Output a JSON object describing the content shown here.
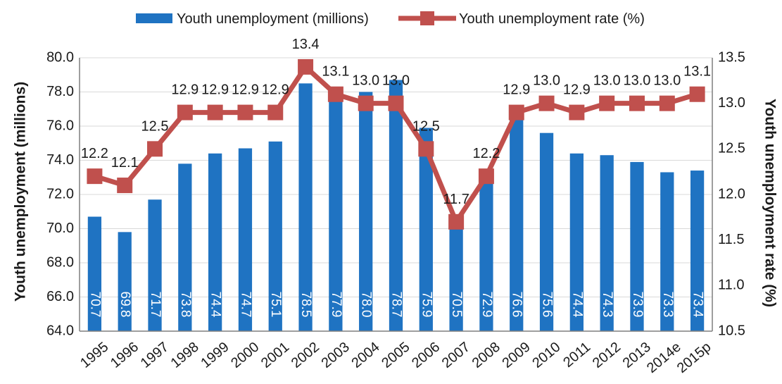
{
  "chart_data": {
    "type": "bar",
    "title": "",
    "categories": [
      "1995",
      "1996",
      "1997",
      "1998",
      "1999",
      "2000",
      "2001",
      "2002",
      "2003",
      "2004",
      "2005",
      "2006",
      "2007",
      "2008",
      "2009",
      "2010",
      "2011",
      "2012",
      "2013",
      "2014e",
      "2015p"
    ],
    "series": [
      {
        "name": "Youth unemployment (millions)",
        "type": "bar",
        "axis": "left",
        "color": "#1f73c2",
        "values": [
          70.7,
          69.8,
          71.7,
          73.8,
          74.4,
          74.7,
          75.1,
          78.5,
          77.9,
          78.0,
          78.7,
          75.9,
          70.5,
          72.9,
          76.6,
          75.6,
          74.4,
          74.3,
          73.9,
          73.3,
          73.4
        ]
      },
      {
        "name": "Youth unemployment rate (%)",
        "type": "line",
        "axis": "right",
        "color": "#c0504d",
        "values": [
          12.2,
          12.1,
          12.5,
          12.9,
          12.9,
          12.9,
          12.9,
          13.4,
          13.1,
          13.0,
          13.0,
          12.5,
          11.7,
          12.2,
          12.9,
          13.0,
          12.9,
          13.0,
          13.0,
          13.0,
          13.1
        ]
      }
    ],
    "ylabel": "Youth unemployment (millions)",
    "ylabel_right": "Youth unemployment rate (%)",
    "ylim": [
      64,
      80
    ],
    "ylim_right": [
      10.5,
      13.5
    ],
    "yticks": [
      "64.0",
      "66.0",
      "68.0",
      "70.0",
      "72.0",
      "74.0",
      "76.0",
      "78.0",
      "80.0"
    ],
    "yticks_right": [
      "10.5",
      "11.0",
      "11.5",
      "12.0",
      "12.5",
      "13.0",
      "13.5"
    ],
    "grid": true,
    "legend_position": "top"
  }
}
